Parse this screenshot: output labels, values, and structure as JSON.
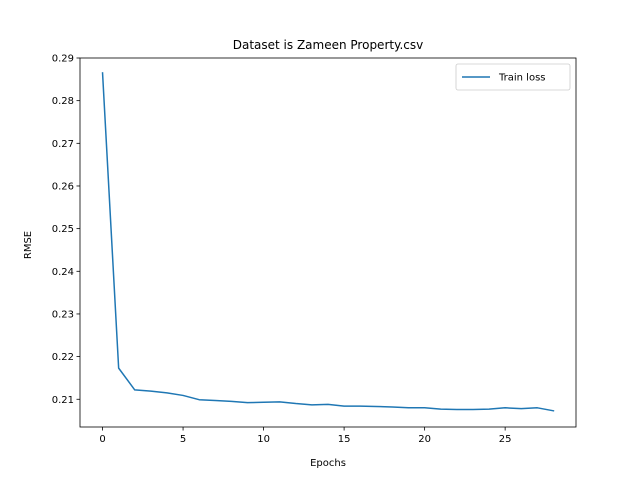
{
  "chart_data": {
    "type": "line",
    "title": "Dataset is Zameen Property.csv",
    "xlabel": "Epochs",
    "ylabel": "RMSE",
    "xlim": [
      -1.4,
      29.4
    ],
    "ylim": [
      0.2035,
      0.29
    ],
    "xticks": [
      0,
      5,
      10,
      15,
      20,
      25
    ],
    "yticks": [
      0.21,
      0.22,
      0.23,
      0.24,
      0.25,
      0.26,
      0.27,
      0.28,
      0.29
    ],
    "grid": false,
    "legend": {
      "position": "top-right",
      "entries": [
        "Train loss"
      ]
    },
    "series": [
      {
        "name": "Train loss",
        "color": "#1f77b4",
        "x": [
          0,
          1,
          2,
          3,
          4,
          5,
          6,
          7,
          8,
          9,
          10,
          11,
          12,
          13,
          14,
          15,
          16,
          17,
          18,
          19,
          20,
          21,
          22,
          23,
          24,
          25,
          26,
          27,
          28
        ],
        "y": [
          0.2865,
          0.2173,
          0.2122,
          0.2119,
          0.2115,
          0.2109,
          0.2099,
          0.2097,
          0.2095,
          0.2092,
          0.2093,
          0.2094,
          0.209,
          0.2087,
          0.2088,
          0.2084,
          0.2084,
          0.2083,
          0.2082,
          0.208,
          0.208,
          0.2077,
          0.2076,
          0.2076,
          0.2077,
          0.208,
          0.2078,
          0.208,
          0.2073
        ]
      }
    ]
  }
}
